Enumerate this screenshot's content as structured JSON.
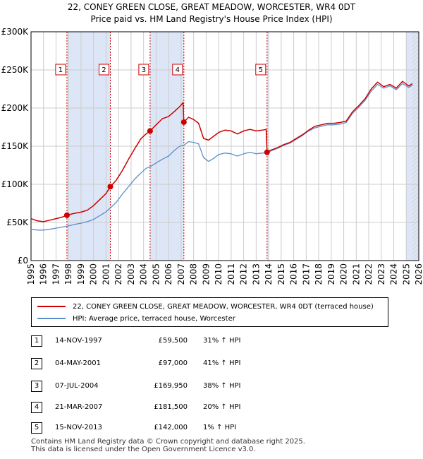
{
  "title": "22, CONEY GREEN CLOSE, GREAT MEADOW, WORCESTER, WR4 0DT",
  "subtitle": "Price paid vs. HM Land Registry's House Price Index (HPI)",
  "colors": {
    "property": "#cc0000",
    "hpi": "#5b8fc9",
    "shade": "#dde6f6",
    "grid": "#cccccc",
    "vline": "#cc0000"
  },
  "chart_data": {
    "type": "line",
    "xlim": [
      1995,
      2026
    ],
    "ylim": [
      0,
      300000
    ],
    "yticks": [
      {
        "value": 0,
        "label": "£0"
      },
      {
        "value": 50000,
        "label": "£50K"
      },
      {
        "value": 100000,
        "label": "£100K"
      },
      {
        "value": 150000,
        "label": "£150K"
      },
      {
        "value": 200000,
        "label": "£200K"
      },
      {
        "value": 250000,
        "label": "£250K"
      },
      {
        "value": 300000,
        "label": "£300K"
      }
    ],
    "xticks": [
      "1995",
      "1996",
      "1997",
      "1998",
      "1999",
      "2000",
      "2001",
      "2002",
      "2003",
      "2004",
      "2005",
      "2006",
      "2007",
      "2008",
      "2009",
      "2010",
      "2011",
      "2012",
      "2013",
      "2014",
      "2015",
      "2016",
      "2017",
      "2018",
      "2019",
      "2020",
      "2021",
      "2022",
      "2023",
      "2024",
      "2025",
      "2026"
    ],
    "shaded_periods": [
      [
        1997.87,
        2001.34
      ],
      [
        2004.52,
        2007.22
      ],
      [
        2013.87,
        2014.0
      ],
      [
        2025.0,
        2026.0
      ]
    ],
    "series": [
      {
        "name": "22, CONEY GREEN CLOSE, GREAT MEADOW, WORCESTER, WR4 0DT (terraced house)",
        "key": "property",
        "points": [
          [
            1995.0,
            55000
          ],
          [
            1995.5,
            52000
          ],
          [
            1996.0,
            51000
          ],
          [
            1996.5,
            53000
          ],
          [
            1997.0,
            55000
          ],
          [
            1997.5,
            57000
          ],
          [
            1997.87,
            59500
          ],
          [
            1998.5,
            62000
          ],
          [
            1999.0,
            63500
          ],
          [
            1999.5,
            66000
          ],
          [
            2000.0,
            72000
          ],
          [
            2000.5,
            80000
          ],
          [
            2001.0,
            88000
          ],
          [
            2001.34,
            97000
          ],
          [
            2001.8,
            105000
          ],
          [
            2002.3,
            118000
          ],
          [
            2002.8,
            133000
          ],
          [
            2003.3,
            147000
          ],
          [
            2003.8,
            160000
          ],
          [
            2004.2,
            166000
          ],
          [
            2004.52,
            169950
          ],
          [
            2005.0,
            178000
          ],
          [
            2005.5,
            186000
          ],
          [
            2006.0,
            189000
          ],
          [
            2006.5,
            196000
          ],
          [
            2006.9,
            202000
          ],
          [
            2007.15,
            207000
          ],
          [
            2007.22,
            181500
          ],
          [
            2007.6,
            188000
          ],
          [
            2008.0,
            185000
          ],
          [
            2008.4,
            180000
          ],
          [
            2008.8,
            160000
          ],
          [
            2009.2,
            158000
          ],
          [
            2009.6,
            163000
          ],
          [
            2010.0,
            168000
          ],
          [
            2010.5,
            171000
          ],
          [
            2011.0,
            170000
          ],
          [
            2011.5,
            166000
          ],
          [
            2012.0,
            170000
          ],
          [
            2012.5,
            172000
          ],
          [
            2013.0,
            170000
          ],
          [
            2013.5,
            171000
          ],
          [
            2013.8,
            172000
          ],
          [
            2013.87,
            142000
          ],
          [
            2014.2,
            145000
          ],
          [
            2014.7,
            148000
          ],
          [
            2015.2,
            152000
          ],
          [
            2015.7,
            155000
          ],
          [
            2016.2,
            160000
          ],
          [
            2016.7,
            165000
          ],
          [
            2017.2,
            171000
          ],
          [
            2017.7,
            176000
          ],
          [
            2018.2,
            178000
          ],
          [
            2018.7,
            180000
          ],
          [
            2019.2,
            180000
          ],
          [
            2019.7,
            181000
          ],
          [
            2020.2,
            183000
          ],
          [
            2020.7,
            195000
          ],
          [
            2021.2,
            203000
          ],
          [
            2021.7,
            212000
          ],
          [
            2022.2,
            225000
          ],
          [
            2022.7,
            234000
          ],
          [
            2023.2,
            228000
          ],
          [
            2023.7,
            231000
          ],
          [
            2024.2,
            226000
          ],
          [
            2024.7,
            235000
          ],
          [
            2025.2,
            229000
          ],
          [
            2025.5,
            232000
          ]
        ]
      },
      {
        "name": "HPI: Average price, terraced house, Worcester",
        "key": "hpi",
        "points": [
          [
            1995.0,
            41000
          ],
          [
            1995.5,
            40000
          ],
          [
            1996.0,
            40000
          ],
          [
            1996.5,
            41000
          ],
          [
            1997.0,
            42500
          ],
          [
            1997.5,
            44000
          ],
          [
            1997.87,
            45000
          ],
          [
            1998.5,
            47500
          ],
          [
            1999.0,
            49000
          ],
          [
            1999.5,
            51000
          ],
          [
            2000.0,
            54000
          ],
          [
            2000.5,
            59000
          ],
          [
            2001.0,
            64000
          ],
          [
            2001.34,
            69000
          ],
          [
            2001.8,
            76000
          ],
          [
            2002.3,
            87000
          ],
          [
            2002.8,
            97000
          ],
          [
            2003.3,
            107000
          ],
          [
            2003.8,
            115000
          ],
          [
            2004.2,
            121000
          ],
          [
            2004.52,
            123000
          ],
          [
            2005.0,
            128000
          ],
          [
            2005.5,
            133000
          ],
          [
            2006.0,
            137000
          ],
          [
            2006.5,
            145000
          ],
          [
            2006.9,
            150000
          ],
          [
            2007.22,
            151000
          ],
          [
            2007.6,
            156000
          ],
          [
            2008.0,
            155000
          ],
          [
            2008.4,
            153000
          ],
          [
            2008.8,
            135000
          ],
          [
            2009.2,
            130000
          ],
          [
            2009.6,
            134000
          ],
          [
            2010.0,
            139000
          ],
          [
            2010.5,
            141000
          ],
          [
            2011.0,
            140000
          ],
          [
            2011.5,
            137000
          ],
          [
            2012.0,
            140000
          ],
          [
            2012.5,
            142000
          ],
          [
            2013.0,
            140000
          ],
          [
            2013.5,
            141000
          ],
          [
            2013.87,
            141000
          ],
          [
            2014.2,
            144000
          ],
          [
            2014.7,
            147000
          ],
          [
            2015.2,
            151000
          ],
          [
            2015.7,
            154000
          ],
          [
            2016.2,
            159000
          ],
          [
            2016.7,
            164000
          ],
          [
            2017.2,
            170000
          ],
          [
            2017.7,
            174000
          ],
          [
            2018.2,
            176000
          ],
          [
            2018.7,
            178000
          ],
          [
            2019.2,
            178000
          ],
          [
            2019.7,
            179000
          ],
          [
            2020.2,
            181000
          ],
          [
            2020.7,
            193000
          ],
          [
            2021.2,
            201000
          ],
          [
            2021.7,
            210000
          ],
          [
            2022.2,
            222000
          ],
          [
            2022.7,
            231000
          ],
          [
            2023.2,
            226000
          ],
          [
            2023.7,
            229000
          ],
          [
            2024.2,
            224000
          ],
          [
            2024.7,
            232000
          ],
          [
            2025.2,
            227000
          ],
          [
            2025.5,
            230000
          ]
        ]
      }
    ],
    "transactions": [
      {
        "label": "1",
        "x": 1997.87,
        "y": 59500
      },
      {
        "label": "2",
        "x": 2001.34,
        "y": 97000
      },
      {
        "label": "3",
        "x": 2004.52,
        "y": 169950
      },
      {
        "label": "4",
        "x": 2007.22,
        "y": 181500
      },
      {
        "label": "5",
        "x": 2013.87,
        "y": 142000
      }
    ]
  },
  "legend": {
    "property": "22, CONEY GREEN CLOSE, GREAT MEADOW, WORCESTER, WR4 0DT (terraced house)",
    "hpi": "HPI: Average price, terraced house, Worcester"
  },
  "table": [
    {
      "num": "1",
      "date": "14-NOV-1997",
      "price": "£59,500",
      "hpi": "31% ↑ HPI"
    },
    {
      "num": "2",
      "date": "04-MAY-2001",
      "price": "£97,000",
      "hpi": "41% ↑ HPI"
    },
    {
      "num": "3",
      "date": "07-JUL-2004",
      "price": "£169,950",
      "hpi": "38% ↑ HPI"
    },
    {
      "num": "4",
      "date": "21-MAR-2007",
      "price": "£181,500",
      "hpi": "20% ↑ HPI"
    },
    {
      "num": "5",
      "date": "15-NOV-2013",
      "price": "£142,000",
      "hpi": "1% ↑ HPI"
    }
  ],
  "footer": {
    "line1": "Contains HM Land Registry data © Crown copyright and database right 2025.",
    "line2": "This data is licensed under the Open Government Licence v3.0."
  }
}
